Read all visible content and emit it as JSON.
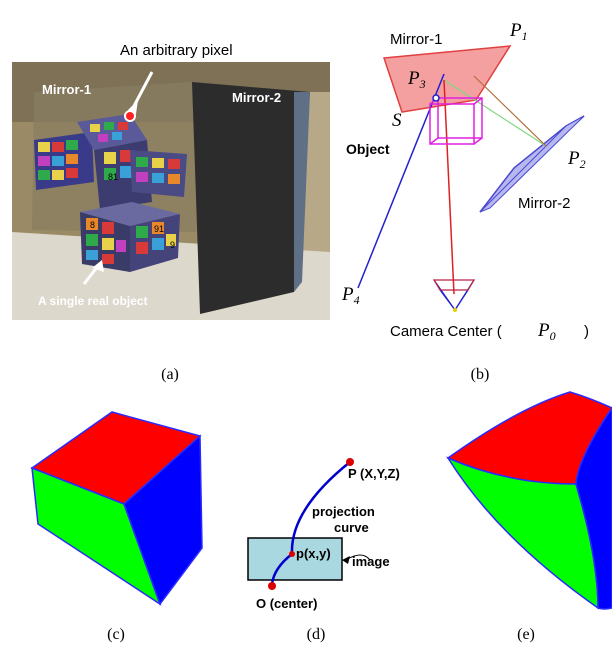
{
  "panel_a": {
    "annotation_top": "An arbitrary pixel",
    "mirror1": "Mirror-1",
    "mirror2": "Mirror-2",
    "annotation_bottom": "A single real object",
    "cube_digits": [
      "8",
      "91",
      "81",
      "9"
    ]
  },
  "panel_b": {
    "mirror1": "Mirror-1",
    "mirror2": "Mirror-2",
    "object": "Object",
    "S": "S",
    "P1": "P",
    "P1_sub": "1",
    "P2": "P",
    "P2_sub": "2",
    "P3": "P",
    "P3_sub": "3",
    "P4": "P",
    "P4_sub": "4",
    "camera_center": "Camera Center (",
    "camera_close": ")",
    "P0": "P",
    "P0_sub": "0"
  },
  "panel_d": {
    "point_P": "P (X,Y,Z)",
    "projection": "projection",
    "curve": "curve",
    "point_p": "p(x,y)",
    "image": "image",
    "origin": "O (center)"
  },
  "captions": {
    "a": "(a)",
    "b": "(b)",
    "c": "(c)",
    "d": "(d)",
    "e": "(e)"
  },
  "colors": {
    "cube_top": "#ff0000",
    "cube_left": "#00ff00",
    "cube_right": "#0000ff",
    "cube_edge": "#2a2aff",
    "mirror1_fill": "#f4a0a0",
    "mirror2_fill": "#b8b8f0",
    "image_plane": "#aad8e0",
    "curve": "#0000cc",
    "point": "#dd0000"
  }
}
